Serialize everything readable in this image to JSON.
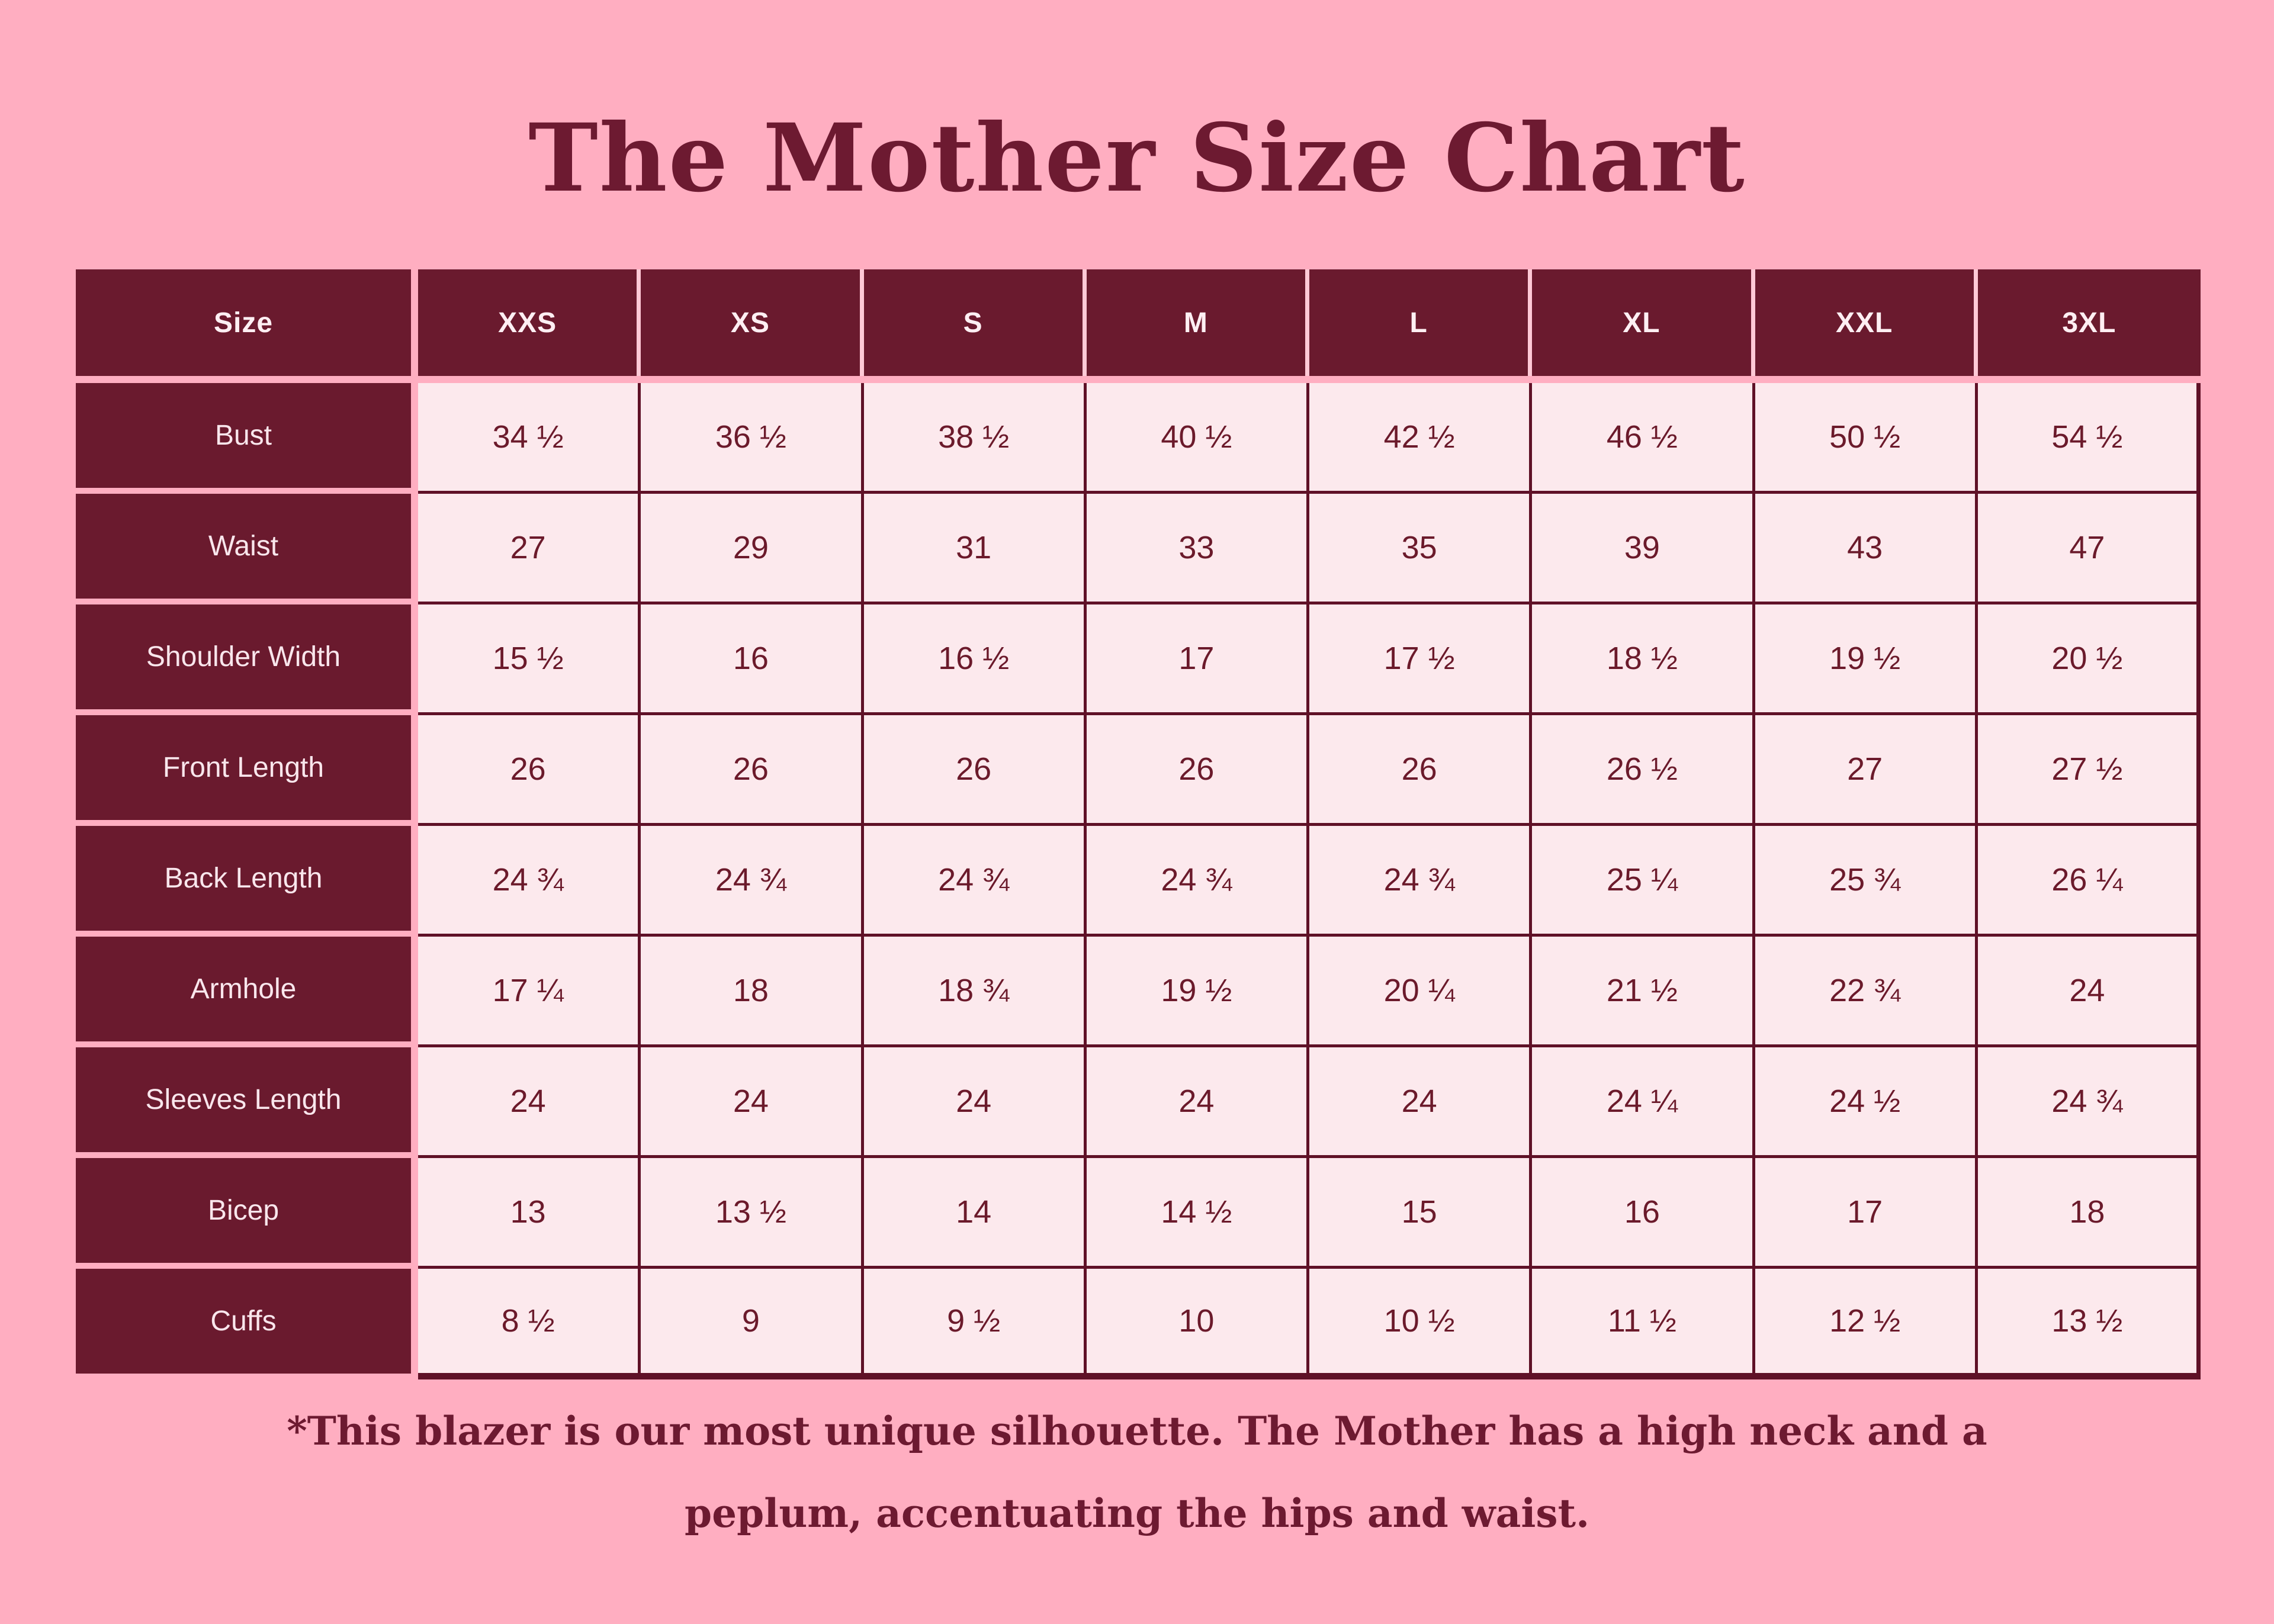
{
  "page": {
    "title": "The Mother Size Chart",
    "footnote_line1": "*This blazer is our most unique silhouette. The Mother has a high neck and a",
    "footnote_line2": "peplum, accentuating the hips and waist."
  },
  "colors": {
    "page_background": "#FFAEC1",
    "maroon_cell_background": "#6A1A2E",
    "maroon_border": "#5F1127",
    "data_cell_background": "#FCE9ED",
    "data_text": "#6B1A2B",
    "header_text": "#FFEFF3",
    "label_text": "#F9E6EC",
    "header_separator": "#FFC9D6",
    "title_text": "#6D1A31"
  },
  "chart_data": {
    "type": "table",
    "title": "The Mother Size Chart",
    "columns": [
      "Size",
      "XXS",
      "XS",
      "S",
      "M",
      "L",
      "XL",
      "XXL",
      "3XL"
    ],
    "rows": [
      {
        "label": "Bust",
        "values": [
          "34 ½",
          "36 ½",
          "38 ½",
          "40 ½",
          "42 ½",
          "46 ½",
          "50 ½",
          "54 ½"
        ]
      },
      {
        "label": "Waist",
        "values": [
          "27",
          "29",
          "31",
          "33",
          "35",
          "39",
          "43",
          "47"
        ]
      },
      {
        "label": "Shoulder Width",
        "values": [
          "15 ½",
          "16",
          "16 ½",
          "17",
          "17 ½",
          "18 ½",
          "19 ½",
          "20 ½"
        ]
      },
      {
        "label": "Front Length",
        "values": [
          "26",
          "26",
          "26",
          "26",
          "26",
          "26 ½",
          "27",
          "27 ½"
        ]
      },
      {
        "label": "Back Length",
        "values": [
          "24 ¾",
          "24 ¾",
          "24 ¾",
          "24 ¾",
          "24 ¾",
          "25 ¼",
          "25 ¾",
          "26 ¼"
        ]
      },
      {
        "label": "Armhole",
        "values": [
          "17 ¼",
          "18",
          "18 ¾",
          "19 ½",
          "20 ¼",
          "21 ½",
          "22 ¾",
          "24"
        ]
      },
      {
        "label": "Sleeves Length",
        "values": [
          "24",
          "24",
          "24",
          "24",
          "24",
          "24 ¼",
          "24 ½",
          "24 ¾"
        ]
      },
      {
        "label": "Bicep",
        "values": [
          "13",
          "13 ½",
          "14",
          "14 ½",
          "15",
          "16",
          "17",
          "18"
        ]
      },
      {
        "label": "Cuffs",
        "values": [
          "8 ½",
          "9",
          "9 ½",
          "10",
          "10 ½",
          "11 ½",
          "12 ½",
          "13 ½"
        ]
      }
    ],
    "footnote": "*This blazer is our most unique silhouette. The Mother has a high neck and a peplum, accentuating the hips and waist."
  }
}
